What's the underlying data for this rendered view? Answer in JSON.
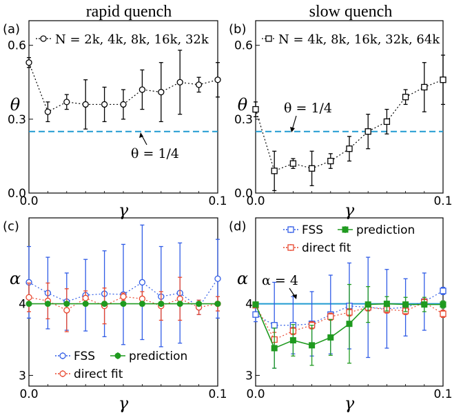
{
  "figure": {
    "col_titles": [
      "rapid quench",
      "slow quench"
    ]
  },
  "chart_data": [
    {
      "panel": "(a)",
      "type": "scatter",
      "xlabel": "γ",
      "ylabel": "θ",
      "xlim": [
        0,
        0.1
      ],
      "ylim": [
        0,
        0.7
      ],
      "xticks": [
        "0.0",
        "0.1"
      ],
      "yticks": [
        "0.0",
        "0.3",
        "0.6"
      ],
      "legend": "N = 2k, 4k, 8k, 16k, 32k",
      "reference": {
        "value": 0.25,
        "label": "θ = 1/4",
        "color": "#1f9ad1"
      },
      "series": [
        {
          "name": "N = 2k, 4k, 8k, 16k, 32k",
          "marker": "circle",
          "color": "#000000",
          "x": [
            0,
            0.01,
            0.02,
            0.03,
            0.04,
            0.05,
            0.06,
            0.07,
            0.08,
            0.09,
            0.1
          ],
          "y": [
            0.53,
            0.33,
            0.37,
            0.36,
            0.36,
            0.36,
            0.42,
            0.41,
            0.45,
            0.44,
            0.46
          ],
          "err": [
            0.02,
            0.04,
            0.03,
            0.1,
            0.07,
            0.06,
            0.08,
            0.12,
            0.13,
            0.03,
            0.07
          ]
        }
      ]
    },
    {
      "panel": "(b)",
      "type": "scatter",
      "xlabel": "γ",
      "ylabel": "θ",
      "xlim": [
        0,
        0.1
      ],
      "ylim": [
        0,
        0.7
      ],
      "xticks": [
        "0.0",
        "0.1"
      ],
      "yticks": [
        "0.0",
        "0.3",
        "0.6"
      ],
      "legend": "N = 4k, 8k, 16k, 32k, 64k",
      "reference": {
        "value": 0.25,
        "label": "θ = 1/4",
        "color": "#1f9ad1"
      },
      "series": [
        {
          "name": "N = 4k, 8k, 16k, 32k, 64k",
          "marker": "square",
          "color": "#000000",
          "x": [
            0,
            0.01,
            0.02,
            0.03,
            0.04,
            0.05,
            0.06,
            0.07,
            0.08,
            0.09,
            0.1
          ],
          "y": [
            0.34,
            0.09,
            0.12,
            0.1,
            0.13,
            0.18,
            0.25,
            0.29,
            0.39,
            0.43,
            0.46
          ],
          "err": [
            0.03,
            0.08,
            0.02,
            0.07,
            0.03,
            0.05,
            0.07,
            0.05,
            0.03,
            0.1,
            0.1
          ]
        }
      ]
    },
    {
      "panel": "(c)",
      "type": "scatter",
      "xlabel": "γ",
      "ylabel": "α",
      "xlim": [
        0,
        0.1
      ],
      "ylim": [
        2.85,
        5.2
      ],
      "xticks": [
        "0.0",
        "0.1"
      ],
      "yticks": [
        "3",
        "4"
      ],
      "legend_labels": {
        "fss": "FSS",
        "prediction": "prediction",
        "direct": "direct fit"
      },
      "series": [
        {
          "name": "FSS",
          "marker": "circle",
          "color": "#2f5be6",
          "x": [
            0,
            0.01,
            0.02,
            0.03,
            0.04,
            0.05,
            0.06,
            0.07,
            0.08,
            0.09,
            0.1
          ],
          "y": [
            4.3,
            4.15,
            4.03,
            4.12,
            4.14,
            4.13,
            4.3,
            4.1,
            4.15,
            3.95,
            4.35
          ],
          "err": [
            0.5,
            0.5,
            0.4,
            0.5,
            0.6,
            0.7,
            0.8,
            0.7,
            0.7,
            0.1,
            0.55
          ]
        },
        {
          "name": "direct fit",
          "marker": "circle",
          "color": "#e8452c",
          "x": [
            0,
            0.01,
            0.02,
            0.03,
            0.04,
            0.05,
            0.06,
            0.07,
            0.08,
            0.09,
            0.1
          ],
          "y": [
            4.09,
            4.04,
            3.91,
            4.08,
            3.97,
            4.1,
            4.07,
            3.97,
            4.07,
            3.95,
            4.0
          ],
          "err": [
            0.2,
            0.25,
            0.3,
            0.1,
            0.25,
            0.05,
            0.1,
            0.2,
            0.3,
            0.1,
            0.1
          ]
        },
        {
          "name": "prediction",
          "marker": "filled-circle",
          "color": "#1f9a1f",
          "x": [
            0,
            0.01,
            0.02,
            0.03,
            0.04,
            0.05,
            0.06,
            0.07,
            0.08,
            0.09,
            0.1
          ],
          "y": [
            4,
            4,
            4,
            4,
            4,
            4,
            4,
            4,
            4,
            4,
            4
          ],
          "err": [
            0,
            0,
            0,
            0,
            0,
            0,
            0,
            0,
            0,
            0,
            0
          ]
        }
      ]
    },
    {
      "panel": "(d)",
      "type": "scatter",
      "xlabel": "γ",
      "ylabel": "α",
      "xlim": [
        0,
        0.1
      ],
      "ylim": [
        2.85,
        5.2
      ],
      "xticks": [
        "0.0",
        "0.1"
      ],
      "yticks": [
        "3",
        "4"
      ],
      "reference": {
        "value": 4,
        "label": "α = 4",
        "color": "#1f9ad1"
      },
      "legend_labels": {
        "fss": "FSS",
        "prediction": "prediction",
        "direct": "direct fit"
      },
      "series": [
        {
          "name": "FSS",
          "marker": "square",
          "color": "#2f5be6",
          "x": [
            0,
            0.01,
            0.02,
            0.03,
            0.04,
            0.05,
            0.06,
            0.07,
            0.08,
            0.09,
            0.1
          ],
          "y": [
            3.85,
            3.7,
            3.7,
            3.72,
            3.85,
            3.97,
            3.95,
            3.93,
            3.95,
            4.03,
            4.18
          ],
          "err": [
            0.1,
            0.6,
            0.4,
            0.45,
            0.55,
            0.6,
            0.7,
            0.55,
            0.4,
            0.4,
            0.05
          ]
        },
        {
          "name": "direct fit",
          "marker": "square",
          "color": "#e8452c",
          "x": [
            0,
            0.01,
            0.02,
            0.03,
            0.04,
            0.05,
            0.06,
            0.07,
            0.08,
            0.09,
            0.1
          ],
          "y": [
            3.98,
            3.5,
            3.62,
            3.7,
            3.82,
            3.88,
            3.95,
            3.92,
            3.9,
            4.02,
            3.86
          ],
          "err": [
            0.02,
            0.1,
            0.05,
            0.05,
            0.05,
            0.05,
            0.05,
            0.05,
            0.05,
            0.05,
            0.05
          ]
        },
        {
          "name": "prediction",
          "marker": "filled-square",
          "color": "#1f9a1f",
          "x": [
            0,
            0.01,
            0.02,
            0.03,
            0.04,
            0.05,
            0.06,
            0.07,
            0.08,
            0.09,
            0.1
          ],
          "y": [
            3.99,
            3.38,
            3.49,
            3.42,
            3.53,
            3.72,
            3.99,
            4.0,
            3.99,
            3.99,
            3.99
          ],
          "err": [
            0.02,
            0.28,
            0.22,
            0.28,
            0.25,
            0.55,
            0.25,
            0.1,
            0.1,
            0.1,
            0.05
          ]
        }
      ]
    }
  ]
}
